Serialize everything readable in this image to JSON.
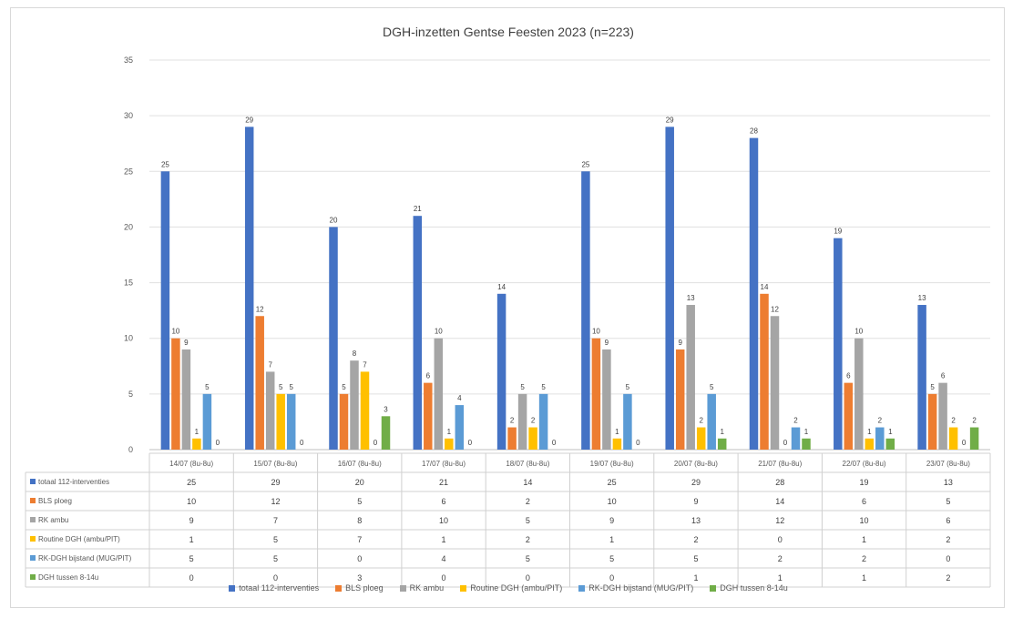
{
  "chart_data": {
    "type": "bar",
    "title": "DGH-inzetten Gentse Feesten 2023 (n=223)",
    "xlabel": "",
    "ylabel": "",
    "ylim": [
      0,
      35
    ],
    "yticks": [
      0,
      5,
      10,
      15,
      20,
      25,
      30,
      35
    ],
    "grid": true,
    "legend": "bottom",
    "data_table": true,
    "categories": [
      "14/07 (8u-8u)",
      "15/07 (8u-8u)",
      "16/07 (8u-8u)",
      "17/07 (8u-8u)",
      "18/07 (8u-8u)",
      "19/07 (8u-8u)",
      "20/07 (8u-8u)",
      "21/07 (8u-8u)",
      "22/07 (8u-8u)",
      "23/07 (8u-8u)"
    ],
    "series": [
      {
        "name": "totaal 112-interventies",
        "color": "#4472c4",
        "values": [
          25,
          29,
          20,
          21,
          14,
          25,
          29,
          28,
          19,
          13
        ]
      },
      {
        "name": "BLS ploeg",
        "color": "#ed7d31",
        "values": [
          10,
          12,
          5,
          6,
          2,
          10,
          9,
          14,
          6,
          5
        ]
      },
      {
        "name": "RK ambu",
        "color": "#a5a5a5",
        "values": [
          9,
          7,
          8,
          10,
          5,
          9,
          13,
          12,
          10,
          6
        ]
      },
      {
        "name": "Routine DGH (ambu/PIT)",
        "color": "#ffc000",
        "values": [
          1,
          5,
          7,
          1,
          2,
          1,
          2,
          0,
          1,
          2
        ]
      },
      {
        "name": "RK-DGH bijstand (MUG/PIT)",
        "color": "#5b9bd5",
        "values": [
          5,
          5,
          0,
          4,
          5,
          5,
          5,
          2,
          2,
          0
        ]
      },
      {
        "name": "DGH tussen 8-14u",
        "color": "#70ad47",
        "values": [
          0,
          0,
          3,
          0,
          0,
          0,
          1,
          1,
          1,
          2
        ]
      }
    ]
  }
}
